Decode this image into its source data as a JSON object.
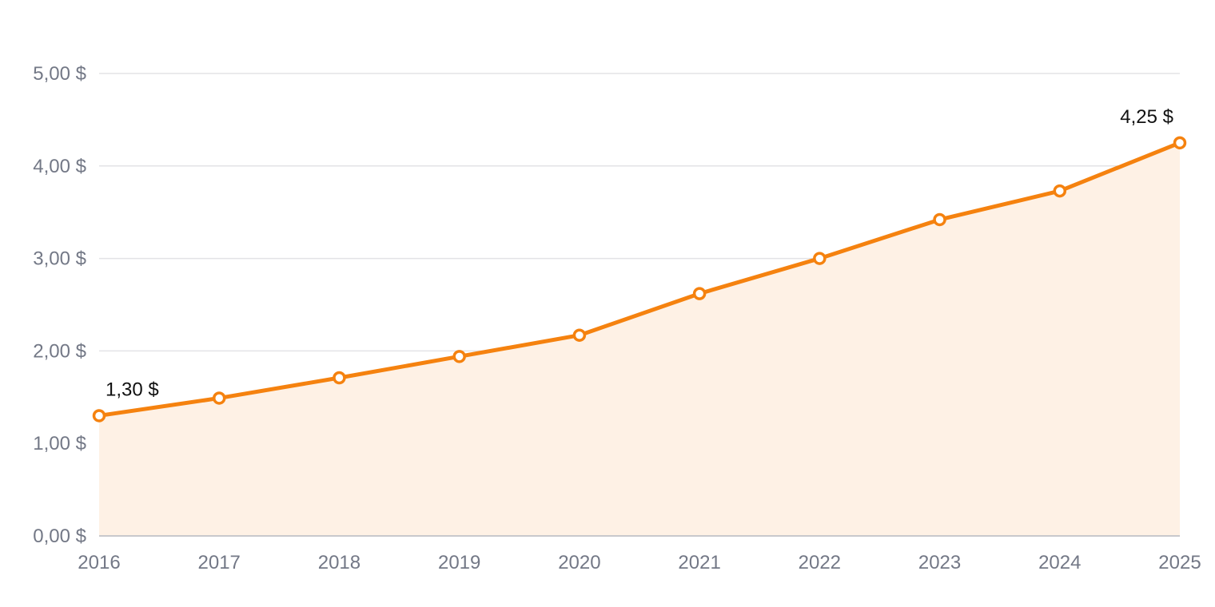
{
  "chart_data": {
    "type": "area",
    "x": [
      "2016",
      "2017",
      "2018",
      "2019",
      "2020",
      "2021",
      "2022",
      "2023",
      "2024",
      "2025"
    ],
    "series": [
      {
        "values": [
          1.3,
          1.49,
          1.71,
          1.94,
          2.17,
          2.62,
          3.0,
          3.42,
          3.73,
          4.25
        ]
      }
    ],
    "y_ticks": [
      "0,00 $",
      "1,00 $",
      "2,00 $",
      "3,00 $",
      "4,00 $",
      "5,00 $"
    ],
    "ylim": [
      0,
      5
    ],
    "grid": true,
    "annotations": [
      {
        "index": 0,
        "text": "1,30 $"
      },
      {
        "index": 9,
        "text": "4,25 $"
      }
    ],
    "colors": {
      "line": "#f5820f",
      "fill": "#fef1e5",
      "marker_fill": "#ffffff"
    }
  }
}
